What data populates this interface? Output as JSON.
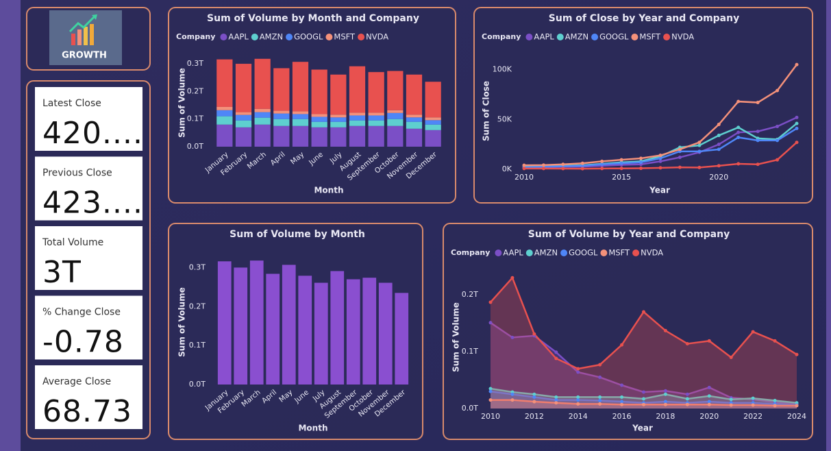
{
  "logo": {
    "text": "GROWTH"
  },
  "cards": [
    {
      "label": "Latest Close",
      "value": "420...."
    },
    {
      "label": "Previous Close",
      "value": "423...."
    },
    {
      "label": "Total Volume",
      "value": "3T"
    },
    {
      "label": "% Change Close",
      "value": -0.78
    },
    {
      "label": "Average Close",
      "value": 68.73
    }
  ],
  "chart_data": [
    {
      "type": "bar",
      "stacked": true,
      "title": "Sum of Volume by Month and Company",
      "legend_title": "Company",
      "x_label": "Month",
      "y_label": "Sum of Volume",
      "categories": [
        "January",
        "February",
        "March",
        "April",
        "May",
        "June",
        "July",
        "August",
        "September",
        "October",
        "November",
        "December"
      ],
      "series": [
        {
          "name": "AAPL",
          "color": "#7b4fc6",
          "values": [
            0.08,
            0.07,
            0.08,
            0.075,
            0.075,
            0.07,
            0.07,
            0.075,
            0.075,
            0.075,
            0.065,
            0.06
          ]
        },
        {
          "name": "AMZN",
          "color": "#5ecfcf",
          "values": [
            0.03,
            0.025,
            0.025,
            0.025,
            0.025,
            0.02,
            0.02,
            0.02,
            0.02,
            0.025,
            0.025,
            0.02
          ]
        },
        {
          "name": "GOOGL",
          "color": "#4f86f7",
          "values": [
            0.022,
            0.02,
            0.02,
            0.02,
            0.018,
            0.018,
            0.016,
            0.018,
            0.018,
            0.022,
            0.016,
            0.016
          ]
        },
        {
          "name": "MSFT",
          "color": "#f4917a",
          "values": [
            0.012,
            0.01,
            0.012,
            0.01,
            0.01,
            0.01,
            0.01,
            0.01,
            0.01,
            0.01,
            0.01,
            0.01
          ]
        },
        {
          "name": "NVDA",
          "color": "#e8514f",
          "values": [
            0.172,
            0.175,
            0.181,
            0.154,
            0.179,
            0.161,
            0.145,
            0.168,
            0.147,
            0.142,
            0.145,
            0.129
          ]
        }
      ],
      "ylim": [
        0,
        0.32
      ],
      "yticks": [
        {
          "value": 0,
          "label": "0.0T"
        },
        {
          "value": 0.1,
          "label": "0.1T"
        },
        {
          "value": 0.2,
          "label": "0.2T"
        },
        {
          "value": 0.3,
          "label": "0.3T"
        }
      ]
    },
    {
      "type": "line",
      "title": "Sum of Close by Year and Company",
      "legend_title": "Company",
      "x_label": "Year",
      "y_label": "Sum of Close",
      "x": [
        2010,
        2011,
        2012,
        2013,
        2014,
        2015,
        2016,
        2017,
        2018,
        2019,
        2020,
        2021,
        2022,
        2023,
        2024
      ],
      "series": [
        {
          "name": "AAPL",
          "color": "#7b4fc6",
          "values": [
            1500,
            2000,
            2500,
            2700,
            3500,
            4500,
            5000,
            8000,
            12000,
            17000,
            25000,
            37000,
            38000,
            43000,
            52000
          ]
        },
        {
          "name": "AMZN",
          "color": "#5ecfcf",
          "values": [
            2500,
            3000,
            3500,
            4000,
            5500,
            7000,
            8000,
            13000,
            22000,
            24000,
            34000,
            42000,
            31000,
            30000,
            46000
          ]
        },
        {
          "name": "GOOGL",
          "color": "#4f86f7",
          "values": [
            2000,
            2500,
            3000,
            3500,
            5000,
            6000,
            7000,
            11000,
            18000,
            18000,
            20000,
            32000,
            29000,
            29000,
            41000
          ]
        },
        {
          "name": "MSFT",
          "color": "#f4917a",
          "values": [
            4000,
            4200,
            5000,
            6000,
            8000,
            9500,
            11000,
            14000,
            20000,
            27000,
            45000,
            68000,
            67000,
            79000,
            105000
          ]
        },
        {
          "name": "NVDA",
          "color": "#e8514f",
          "values": [
            800,
            800,
            700,
            600,
            800,
            900,
            1000,
            1500,
            2000,
            1800,
            3500,
            5500,
            5000,
            9500,
            27000
          ]
        }
      ],
      "xlim": [
        2010,
        2024
      ],
      "xticks": [
        2010,
        2015,
        2020
      ],
      "ylim": [
        0,
        110000
      ],
      "yticks": [
        {
          "value": 0,
          "label": "0K"
        },
        {
          "value": 50000,
          "label": "50K"
        },
        {
          "value": 100000,
          "label": "100K"
        }
      ]
    },
    {
      "type": "bar",
      "title": "Sum of Volume by Month",
      "x_label": "Month",
      "y_label": "Sum of Volume",
      "categories": [
        "January",
        "February",
        "March",
        "April",
        "May",
        "June",
        "July",
        "August",
        "September",
        "October",
        "November",
        "December"
      ],
      "values": [
        0.316,
        0.3,
        0.318,
        0.284,
        0.307,
        0.279,
        0.261,
        0.291,
        0.27,
        0.274,
        0.261,
        0.235
      ],
      "color": "#8a4fd0",
      "ylim": [
        0,
        0.32
      ],
      "yticks": [
        {
          "value": 0,
          "label": "0.0T"
        },
        {
          "value": 0.1,
          "label": "0.1T"
        },
        {
          "value": 0.2,
          "label": "0.2T"
        },
        {
          "value": 0.3,
          "label": "0.3T"
        }
      ]
    },
    {
      "type": "area",
      "title": "Sum of Volume by Year and Company",
      "legend_title": "Company",
      "x_label": "Year",
      "y_label": "Sum of Volume",
      "x": [
        2010,
        2011,
        2012,
        2013,
        2014,
        2015,
        2016,
        2017,
        2018,
        2019,
        2020,
        2021,
        2022,
        2023,
        2024
      ],
      "series": [
        {
          "name": "AAPL",
          "color": "#7b4fc6",
          "values": [
            0.151,
            0.125,
            0.128,
            0.099,
            0.064,
            0.055,
            0.041,
            0.029,
            0.031,
            0.025,
            0.037,
            0.019,
            0.016,
            0.011,
            0.008
          ]
        },
        {
          "name": "AMZN",
          "color": "#5ecfcf",
          "values": [
            0.035,
            0.029,
            0.025,
            0.02,
            0.02,
            0.02,
            0.02,
            0.017,
            0.025,
            0.017,
            0.022,
            0.016,
            0.018,
            0.014,
            0.01
          ]
        },
        {
          "name": "GOOGL",
          "color": "#4f86f7",
          "values": [
            0.03,
            0.025,
            0.02,
            0.015,
            0.015,
            0.014,
            0.012,
            0.01,
            0.012,
            0.01,
            0.012,
            0.01,
            0.01,
            0.008,
            0.006
          ]
        },
        {
          "name": "MSFT",
          "color": "#f4917a",
          "values": [
            0.015,
            0.015,
            0.012,
            0.01,
            0.008,
            0.008,
            0.007,
            0.007,
            0.007,
            0.007,
            0.007,
            0.006,
            0.006,
            0.005,
            0.005
          ]
        },
        {
          "name": "NVDA",
          "color": "#e8514f",
          "values": [
            0.187,
            0.23,
            0.131,
            0.088,
            0.07,
            0.077,
            0.112,
            0.17,
            0.137,
            0.114,
            0.119,
            0.09,
            0.135,
            0.119,
            0.095
          ]
        }
      ],
      "xlim": [
        2010,
        2024
      ],
      "xticks": [
        2010,
        2012,
        2014,
        2016,
        2018,
        2020,
        2022,
        2024
      ],
      "ylim": [
        0,
        0.24
      ],
      "yticks": [
        {
          "value": 0,
          "label": "0.0T"
        },
        {
          "value": 0.1,
          "label": "0.1T"
        },
        {
          "value": 0.2,
          "label": "0.2T"
        }
      ]
    }
  ]
}
